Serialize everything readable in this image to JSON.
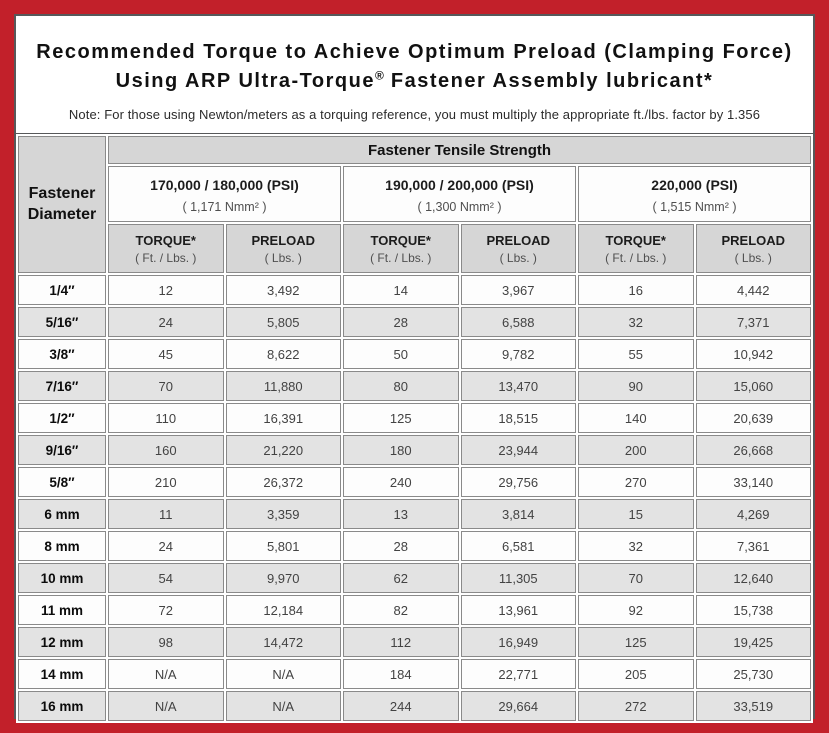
{
  "colors": {
    "frame_red": "#c2202a",
    "panel_border": "#57585a",
    "header_gray": "#d6d6d6",
    "row_alt_gray": "#e3e3e3",
    "row_white": "#fdfdfd",
    "cell_border": "#8a8a8a"
  },
  "title": {
    "line1": "Recommended Torque to Achieve Optimum Preload (Clamping Force)",
    "line2_pre": "Using ARP Ultra-Torque",
    "line2_reg": "®",
    "line2_post": " Fastener Assembly lubricant*",
    "note": "Note: For those using Newton/meters as a torquing reference, you must multiply the appropriate ft./lbs. factor by 1.356"
  },
  "table": {
    "corner_header": "Fastener Diameter",
    "tensile_header": "Fastener Tensile Strength",
    "strength_groups": [
      {
        "psi": "170,000 / 180,000 (PSI)",
        "nmm": "( 1,171 Nmm² )"
      },
      {
        "psi": "190,000 / 200,000 (PSI)",
        "nmm": "( 1,300 Nmm² )"
      },
      {
        "psi": "220,000 (PSI)",
        "nmm": "( 1,515 Nmm² )"
      }
    ],
    "col_headers": {
      "torque_label": "TORQUE*",
      "torque_unit": "( Ft. / Lbs. )",
      "preload_label": "PRELOAD",
      "preload_unit": "( Lbs. )"
    },
    "rows": [
      {
        "diameter": "1/4″",
        "values": [
          "12",
          "3,492",
          "14",
          "3,967",
          "16",
          "4,442"
        ]
      },
      {
        "diameter": "5/16″",
        "values": [
          "24",
          "5,805",
          "28",
          "6,588",
          "32",
          "7,371"
        ]
      },
      {
        "diameter": "3/8″",
        "values": [
          "45",
          "8,622",
          "50",
          "9,782",
          "55",
          "10,942"
        ]
      },
      {
        "diameter": "7/16″",
        "values": [
          "70",
          "11,880",
          "80",
          "13,470",
          "90",
          "15,060"
        ]
      },
      {
        "diameter": "1/2″",
        "values": [
          "110",
          "16,391",
          "125",
          "18,515",
          "140",
          "20,639"
        ]
      },
      {
        "diameter": "9/16″",
        "values": [
          "160",
          "21,220",
          "180",
          "23,944",
          "200",
          "26,668"
        ]
      },
      {
        "diameter": "5/8″",
        "values": [
          "210",
          "26,372",
          "240",
          "29,756",
          "270",
          "33,140"
        ]
      },
      {
        "diameter": "6 mm",
        "values": [
          "11",
          "3,359",
          "13",
          "3,814",
          "15",
          "4,269"
        ]
      },
      {
        "diameter": "8 mm",
        "values": [
          "24",
          "5,801",
          "28",
          "6,581",
          "32",
          "7,361"
        ]
      },
      {
        "diameter": "10 mm",
        "values": [
          "54",
          "9,970",
          "62",
          "11,305",
          "70",
          "12,640"
        ]
      },
      {
        "diameter": "11 mm",
        "values": [
          "72",
          "12,184",
          "82",
          "13,961",
          "92",
          "15,738"
        ]
      },
      {
        "diameter": "12 mm",
        "values": [
          "98",
          "14,472",
          "112",
          "16,949",
          "125",
          "19,425"
        ]
      },
      {
        "diameter": "14 mm",
        "values": [
          "N/A",
          "N/A",
          "184",
          "22,771",
          "205",
          "25,730"
        ]
      },
      {
        "diameter": "16 mm",
        "values": [
          "N/A",
          "N/A",
          "244",
          "29,664",
          "272",
          "33,519"
        ]
      }
    ]
  }
}
